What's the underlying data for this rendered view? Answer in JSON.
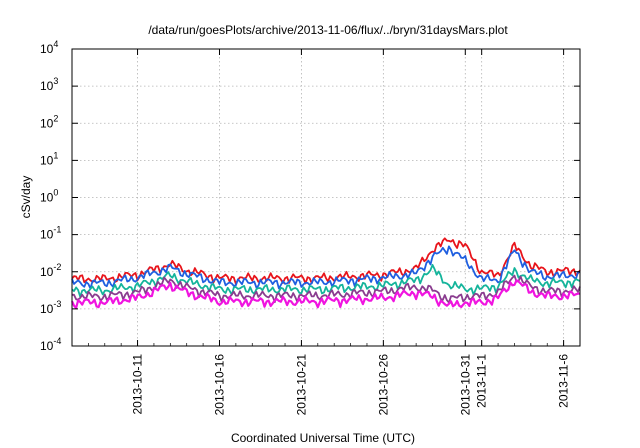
{
  "chart_data": {
    "type": "line",
    "title": "/data/run/goesPlots/archive/2013-11-06/flux/../bryn/31daysMars.plot",
    "xlabel": "Coordinated Universal Time (UTC)",
    "ylabel": "cSv/day",
    "yscale": "log",
    "ylim": [
      0.0001,
      10000
    ],
    "y_ticks": [
      {
        "base": "10",
        "exp": "-4",
        "value": 0.0001
      },
      {
        "base": "10",
        "exp": "-3",
        "value": 0.001
      },
      {
        "base": "10",
        "exp": "-2",
        "value": 0.01
      },
      {
        "base": "10",
        "exp": "-1",
        "value": 0.1
      },
      {
        "base": "10",
        "exp": "0",
        "value": 1
      },
      {
        "base": "10",
        "exp": "1",
        "value": 10
      },
      {
        "base": "10",
        "exp": "2",
        "value": 100
      },
      {
        "base": "10",
        "exp": "3",
        "value": 1000
      },
      {
        "base": "10",
        "exp": "4",
        "value": 10000
      }
    ],
    "xlim": [
      "2013-10-07",
      "2013-11-07"
    ],
    "x_ticks": [
      "2013-10-11",
      "2013-10-16",
      "2013-10-21",
      "2013-10-26",
      "2013-10-31",
      "2013-11-1",
      "2013-11-6"
    ],
    "x_tick_dates": [
      "2013-10-11",
      "2013-10-16",
      "2013-10-21",
      "2013-10-26",
      "2013-10-31",
      "2013-11-01",
      "2013-11-06"
    ],
    "grid": true,
    "x": [
      "2013-10-07",
      "2013-10-09",
      "2013-10-11",
      "2013-10-13",
      "2013-10-14",
      "2013-10-16",
      "2013-10-18",
      "2013-10-20",
      "2013-10-22",
      "2013-10-24",
      "2013-10-26",
      "2013-10-28",
      "2013-10-29",
      "2013-10-30",
      "2013-10-31",
      "2013-11-01",
      "2013-11-02",
      "2013-11-03",
      "2013-11-04",
      "2013-11-05",
      "2013-11-07"
    ],
    "series": [
      {
        "color": "#e8141b",
        "values": [
          0.0065,
          0.0065,
          0.0085,
          0.016,
          0.011,
          0.0068,
          0.0068,
          0.0068,
          0.0068,
          0.0075,
          0.0085,
          0.012,
          0.04,
          0.075,
          0.05,
          0.01,
          0.008,
          0.05,
          0.015,
          0.01,
          0.011
        ]
      },
      {
        "color": "#1f5fe0",
        "values": [
          0.005,
          0.005,
          0.007,
          0.013,
          0.009,
          0.0052,
          0.0052,
          0.0052,
          0.0052,
          0.006,
          0.007,
          0.009,
          0.025,
          0.045,
          0.02,
          0.0065,
          0.006,
          0.038,
          0.01,
          0.0075,
          0.0085
        ]
      },
      {
        "color": "#14b49b",
        "values": [
          0.0032,
          0.0032,
          0.0042,
          0.008,
          0.0055,
          0.0034,
          0.0034,
          0.0034,
          0.0034,
          0.0038,
          0.0043,
          0.006,
          0.012,
          0.0045,
          0.0035,
          0.0035,
          0.0042,
          0.011,
          0.006,
          0.005,
          0.0055
        ]
      },
      {
        "color": "#8a3c8f",
        "values": [
          0.0022,
          0.0022,
          0.0028,
          0.006,
          0.0038,
          0.0023,
          0.0023,
          0.0023,
          0.0023,
          0.0026,
          0.003,
          0.004,
          0.0032,
          0.0018,
          0.0022,
          0.0022,
          0.0028,
          0.008,
          0.004,
          0.003,
          0.0032
        ]
      },
      {
        "color": "#f014e0",
        "values": [
          0.0015,
          0.0015,
          0.002,
          0.0045,
          0.0028,
          0.0016,
          0.0016,
          0.0016,
          0.0016,
          0.0018,
          0.002,
          0.0028,
          0.0022,
          0.0012,
          0.0015,
          0.0015,
          0.002,
          0.006,
          0.003,
          0.0022,
          0.0024
        ]
      }
    ]
  }
}
